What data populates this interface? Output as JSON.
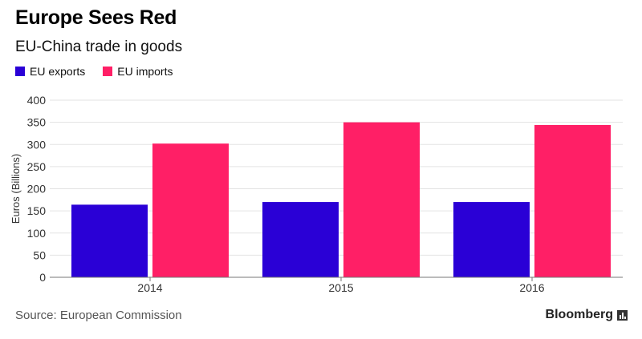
{
  "header": {
    "title": "Europe Sees Red",
    "subtitle": "EU-China trade in goods"
  },
  "legend": {
    "items": [
      {
        "label": "EU exports",
        "color": "#2a00d6"
      },
      {
        "label": "EU imports",
        "color": "#ff1f66"
      }
    ]
  },
  "footer": {
    "source": "Source: European Commission",
    "brand": "Bloomberg",
    "brand_icon": "bloomberg-chart-icon"
  },
  "chart_data": {
    "type": "bar",
    "categories": [
      "2014",
      "2015",
      "2016"
    ],
    "series": [
      {
        "name": "EU exports",
        "values": [
          164,
          170,
          170
        ],
        "color": "#2a00d6"
      },
      {
        "name": "EU imports",
        "values": [
          302,
          350,
          344
        ],
        "color": "#ff1f66"
      }
    ],
    "title": "Europe Sees Red",
    "subtitle": "EU-China trade in goods",
    "xlabel": "",
    "ylabel": "Euros (Billions)",
    "ylim": [
      0,
      400
    ],
    "yticks": [
      0,
      50,
      100,
      150,
      200,
      250,
      300,
      350,
      400
    ],
    "grid": true,
    "legend_position": "top-left"
  }
}
